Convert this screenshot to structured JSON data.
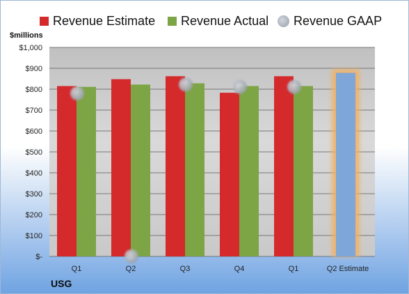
{
  "legend": {
    "estimate_label": "Revenue Estimate",
    "actual_label": "Revenue Actual",
    "gaap_label": "Revenue GAAP"
  },
  "colors": {
    "estimate": "#d42a2c",
    "actual": "#7da445",
    "gaap": "#a8aeb8",
    "forecast": "#7ea6d8",
    "forecast_glow": "#f3b060"
  },
  "company": "USG",
  "chart_data": {
    "type": "bar",
    "ylabel": "$millions",
    "ylim": [
      0,
      1000
    ],
    "y_ticks": [
      "$-",
      "$100",
      "$200",
      "$300",
      "$400",
      "$500",
      "$600",
      "$700",
      "$800",
      "$900",
      "$1,000"
    ],
    "categories": [
      "Q1",
      "Q2",
      "Q3",
      "Q4",
      "Q1",
      "Q2 Estimate"
    ],
    "series": [
      {
        "name": "Revenue Estimate",
        "values": [
          815,
          848,
          862,
          783,
          862,
          null
        ]
      },
      {
        "name": "Revenue Actual",
        "values": [
          811,
          822,
          828,
          815,
          815,
          878
        ]
      },
      {
        "name": "Revenue GAAP",
        "values": [
          780,
          0,
          822,
          811,
          811,
          null
        ]
      }
    ],
    "forecast_category_index": 5
  }
}
